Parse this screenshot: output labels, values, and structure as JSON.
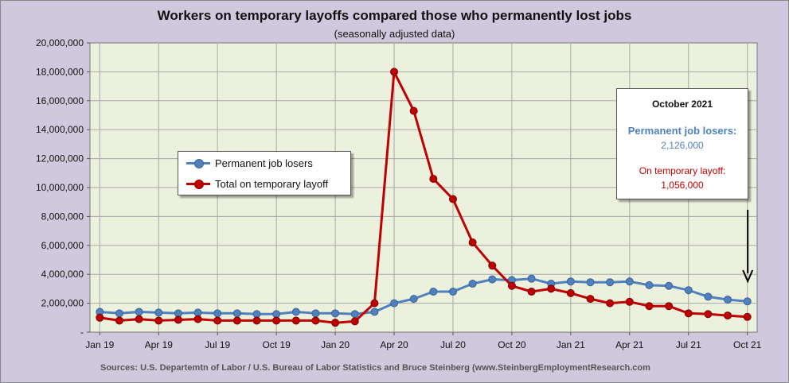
{
  "chart_data": {
    "type": "line",
    "title": "Workers on temporary layoffs compared those who permanently lost jobs",
    "subtitle": "(seasonally adjusted data)",
    "x": [
      "Jan 19",
      "Feb 19",
      "Mar 19",
      "Apr 19",
      "May 19",
      "Jun 19",
      "Jul 19",
      "Aug 19",
      "Sep 19",
      "Oct 19",
      "Nov 19",
      "Dec 19",
      "Jan 20",
      "Feb 20",
      "Mar 20",
      "Apr 20",
      "May 20",
      "Jun 20",
      "Jul 20",
      "Aug 20",
      "Sep 20",
      "Oct 20",
      "Nov 20",
      "Dec 20",
      "Jan 21",
      "Feb 21",
      "Mar 21",
      "Apr 21",
      "May 21",
      "Jun 21",
      "Jul 21",
      "Aug 21",
      "Sep 21",
      "Oct 21"
    ],
    "x_tick_labels": [
      "Jan 19",
      "Apr 19",
      "Jul 19",
      "Oct 19",
      "Jan 20",
      "Apr 20",
      "Jul 20",
      "Oct 20",
      "Jan 21",
      "Apr 21",
      "Jul 21",
      "Oct 21"
    ],
    "y_tick_labels": [
      "-",
      "2,000,000",
      "4,000,000",
      "6,000,000",
      "8,000,000",
      "10,000,000",
      "12,000,000",
      "14,000,000",
      "16,000,000",
      "18,000,000",
      "20,000,000"
    ],
    "ylim": [
      0,
      20000000
    ],
    "grid": true,
    "legend_placement": "center-left",
    "series": [
      {
        "name": "Permanent job losers",
        "color": "#4f81bd",
        "values": [
          1400000,
          1300000,
          1400000,
          1350000,
          1300000,
          1350000,
          1300000,
          1300000,
          1250000,
          1250000,
          1400000,
          1300000,
          1300000,
          1250000,
          1400000,
          2000000,
          2300000,
          2800000,
          2800000,
          3350000,
          3650000,
          3600000,
          3700000,
          3350000,
          3500000,
          3450000,
          3450000,
          3500000,
          3250000,
          3200000,
          2900000,
          2450000,
          2250000,
          2126000
        ]
      },
      {
        "name": "Total on temporary layoff",
        "color": "#c00000",
        "values": [
          1000000,
          800000,
          900000,
          800000,
          850000,
          900000,
          800000,
          800000,
          800000,
          800000,
          800000,
          800000,
          650000,
          750000,
          2000000,
          18000000,
          15300000,
          10600000,
          9200000,
          6200000,
          4600000,
          3200000,
          2800000,
          3000000,
          2700000,
          2300000,
          2000000,
          2100000,
          1800000,
          1800000,
          1300000,
          1250000,
          1150000,
          1056000
        ]
      }
    ],
    "callout": {
      "heading": "October 2021",
      "perm_label": "Permanent job losers:",
      "perm_value": "2,126,000",
      "temp_label": "On temporary layoff:",
      "temp_value": "1,056,000"
    },
    "colors": {
      "plot_bg": "#ecf1de",
      "frame_bg": "#d0c8dc",
      "grid": "#a8a8a8"
    }
  },
  "source": "Sources: U.S. Departemtn of Labor / U.S. Bureau of Labor Statistics and Bruce Steinberg (www.SteinbergEmploymentResearch.com"
}
